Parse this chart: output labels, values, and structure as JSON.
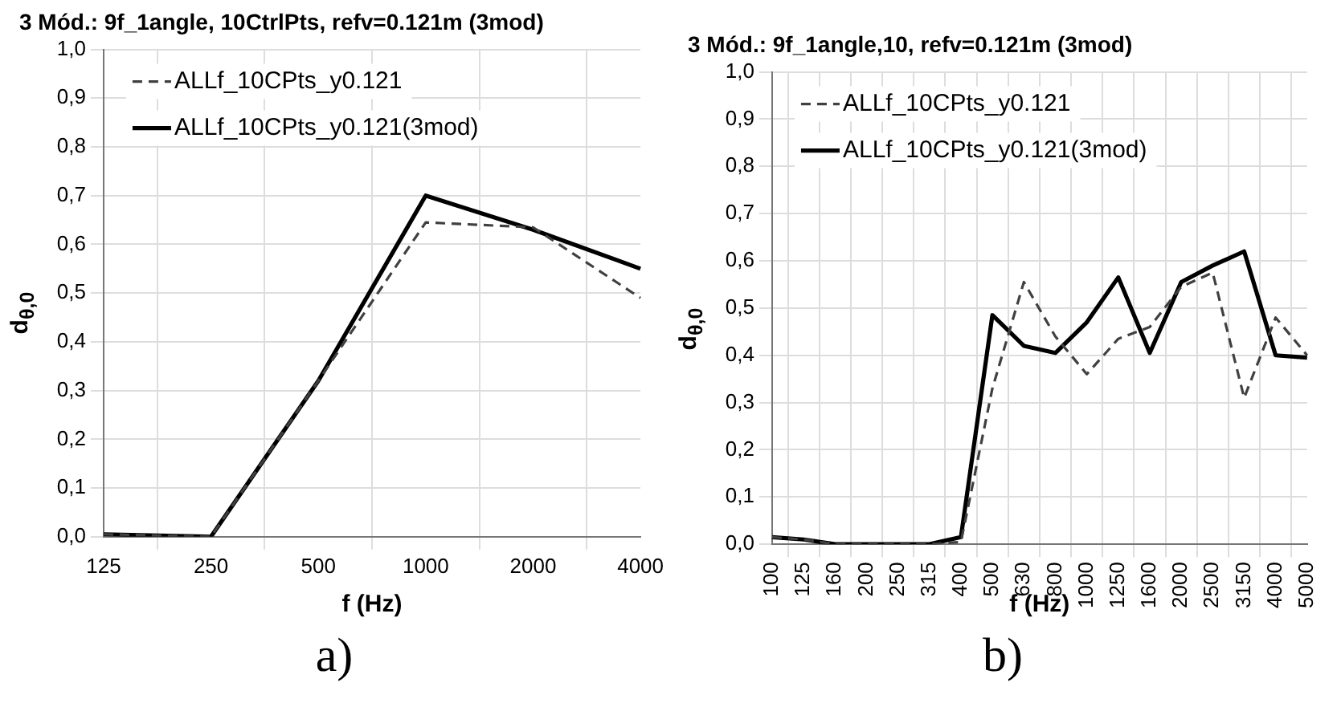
{
  "chart_data": [
    {
      "type": "line",
      "title": "3 Mód.: 9f_1angle, 10CtrlPts, refv=0.121m (3mod)",
      "xlabel": "f (Hz)",
      "ylabel": "d$_{θ,0}$",
      "categories": [
        "125",
        "250",
        "500",
        "1000",
        "2000",
        "4000"
      ],
      "series": [
        {
          "name": "ALLf_10CPts_y0.121",
          "color": "#404040",
          "line_style": "dashed",
          "values": [
            0.005,
            0,
            0.32,
            0.645,
            0.635,
            0.49
          ]
        },
        {
          "name": "ALLf_10CPts_y0.121(3mod)",
          "color": "#000000",
          "line_style": "solid",
          "values": [
            0.005,
            0,
            0.32,
            0.7,
            0.63,
            0.55
          ]
        }
      ],
      "ylim": [
        0,
        1
      ],
      "yticks": [
        {
          "value": 0,
          "label": "0,0"
        },
        {
          "value": 0.1,
          "label": "0,1"
        },
        {
          "value": 0.2,
          "label": "0,2"
        },
        {
          "value": 0.3,
          "label": "0,3"
        },
        {
          "value": 0.4,
          "label": "0,4"
        },
        {
          "value": 0.5,
          "label": "0,5"
        },
        {
          "value": 0.6,
          "label": "0,6"
        },
        {
          "value": 0.7,
          "label": "0,7"
        },
        {
          "value": 0.8,
          "label": "0,8"
        },
        {
          "value": 0.9,
          "label": "0,9"
        },
        {
          "value": 1,
          "label": "1,0"
        }
      ],
      "grid": true,
      "legend": "top left",
      "marker": "none",
      "annotations": [
        "a)"
      ]
    },
    {
      "type": "line",
      "title": "3 Mód.: 9f_1angle,10, refv=0.121m (3mod)",
      "xlabel": "f (Hz)",
      "ylabel": "d$_{θ,0}$",
      "categories": [
        "100",
        "125",
        "160",
        "200",
        "250",
        "315",
        "400",
        "500",
        "630",
        "800",
        "1000",
        "1250",
        "1600",
        "2000",
        "2500",
        "3150",
        "4000",
        "5000"
      ],
      "series": [
        {
          "name": "ALLf_10CPts_y0.121",
          "color": "#404040",
          "line_style": "dashed",
          "values": [
            0.015,
            0.01,
            0,
            0,
            0,
            0,
            0.005,
            0.33,
            0.555,
            0.44,
            0.36,
            0.435,
            0.46,
            0.545,
            0.575,
            0.31,
            0.48,
            0.4
          ]
        },
        {
          "name": "ALLf_10CPts_y0.121(3mod)",
          "color": "#000000",
          "line_style": "solid",
          "values": [
            0.015,
            0.01,
            0,
            0,
            0,
            0,
            0.015,
            0.485,
            0.42,
            0.405,
            0.47,
            0.565,
            0.405,
            0.555,
            0.59,
            0.62,
            0.4,
            0.395
          ]
        }
      ],
      "ylim": [
        0,
        1
      ],
      "yticks": [
        {
          "value": 0,
          "label": "0,0"
        },
        {
          "value": 0.1,
          "label": "0,1"
        },
        {
          "value": 0.2,
          "label": "0,2"
        },
        {
          "value": 0.3,
          "label": "0,3"
        },
        {
          "value": 0.4,
          "label": "0,4"
        },
        {
          "value": 0.5,
          "label": "0,5"
        },
        {
          "value": 0.6,
          "label": "0,6"
        },
        {
          "value": 0.7,
          "label": "0,7"
        },
        {
          "value": 0.8,
          "label": "0,8"
        },
        {
          "value": 0.9,
          "label": "0,9"
        },
        {
          "value": 1,
          "label": "1,0"
        }
      ],
      "grid": true,
      "legend": "top left",
      "marker": "none",
      "annotations": [
        "b)"
      ]
    }
  ]
}
